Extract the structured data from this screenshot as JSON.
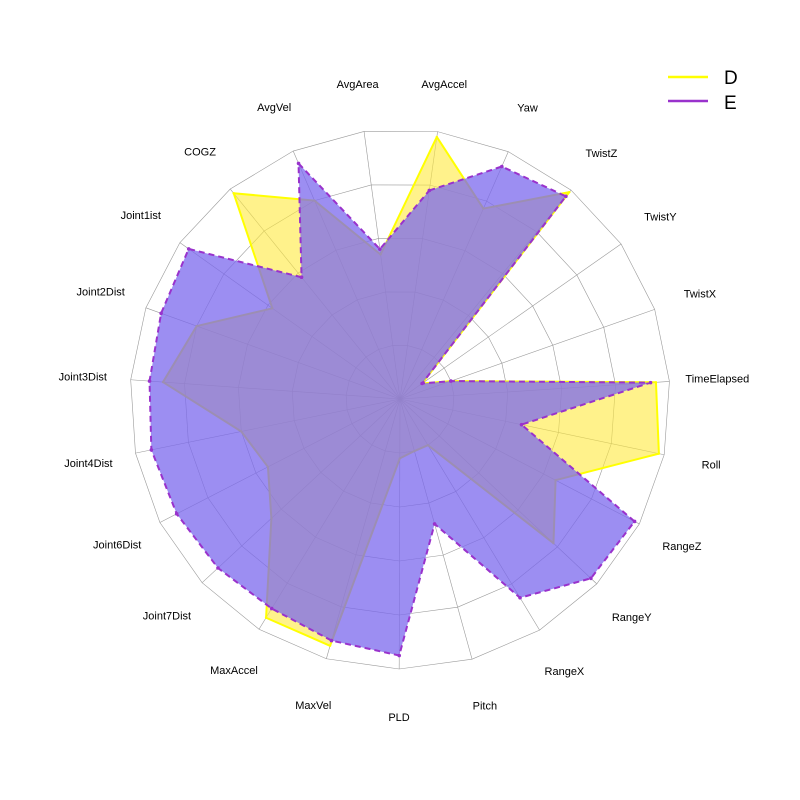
{
  "chart_data": {
    "type": "radar",
    "title": "",
    "axes": [
      "AvgAccel",
      "Yaw",
      "TwistZ",
      "TwistY",
      "TwistX",
      "TimeElapsed",
      "Roll",
      "RangeZ",
      "RangeY",
      "RangeX",
      "Pitch",
      "PLD",
      "MaxVel",
      "MaxAccel",
      "Joint7Dist",
      "Joint6Dist",
      "Joint4Dist",
      "Joint3Dist",
      "Joint2Dist",
      "Joint1ist",
      "COGZ",
      "AvgVel",
      "AvgArea"
    ],
    "range": [
      0,
      1
    ],
    "grid_levels": 5,
    "series": [
      {
        "name": "D",
        "color": "#ffff00",
        "fill": "#ffea3d",
        "line_style": "solid",
        "values": [
          0.98,
          0.77,
          0.99,
          0.1,
          0.2,
          0.95,
          0.98,
          0.65,
          0.78,
          0.2,
          0.2,
          0.22,
          0.95,
          0.95,
          0.65,
          0.55,
          0.6,
          0.88,
          0.8,
          0.58,
          0.98,
          0.8,
          0.54
        ]
      },
      {
        "name": "E",
        "color": "#9932cc",
        "fill": "#7b68ee",
        "line_style": "dashed",
        "values": [
          0.78,
          0.94,
          0.97,
          0.1,
          0.2,
          0.93,
          0.46,
          0.98,
          0.97,
          0.86,
          0.48,
          0.95,
          0.93,
          0.91,
          0.92,
          0.93,
          0.94,
          0.93,
          0.94,
          0.96,
          0.58,
          0.95,
          0.56
        ]
      }
    ],
    "legend": {
      "position": "top-right",
      "entries": [
        "D",
        "E"
      ]
    }
  }
}
